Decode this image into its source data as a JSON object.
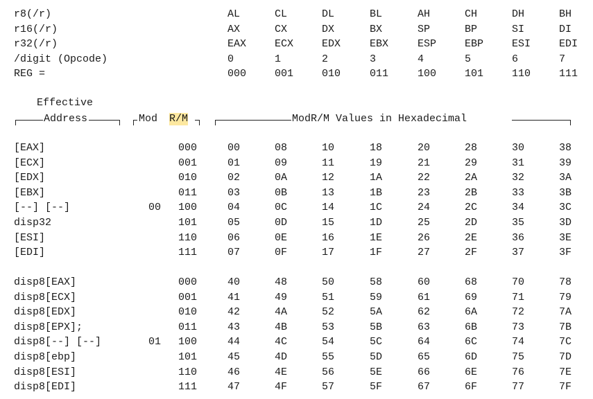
{
  "header": {
    "rows": [
      {
        "label": "r8(/r)",
        "values": [
          "AL",
          "CL",
          "DL",
          "BL",
          "AH",
          "CH",
          "DH",
          "BH"
        ]
      },
      {
        "label": "r16(/r)",
        "values": [
          "AX",
          "CX",
          "DX",
          "BX",
          "SP",
          "BP",
          "SI",
          "DI"
        ]
      },
      {
        "label": "r32(/r)",
        "values": [
          "EAX",
          "ECX",
          "EDX",
          "EBX",
          "ESP",
          "EBP",
          "ESI",
          "EDI"
        ]
      },
      {
        "label": "/digit (Opcode)",
        "values": [
          "0",
          "1",
          "2",
          "3",
          "4",
          "5",
          "6",
          "7"
        ]
      },
      {
        "label": "REG =",
        "values": [
          "000",
          "001",
          "010",
          "011",
          "100",
          "101",
          "110",
          "111"
        ]
      }
    ]
  },
  "column_headers": {
    "effective": "Effective",
    "address": "Address",
    "mod": "Mod",
    "rm": "R/M",
    "values_title": "ModR/M Values in Hexadecimal"
  },
  "groups": [
    {
      "mod": "00",
      "rows": [
        {
          "address": "[EAX]",
          "rm": "000",
          "values": [
            "00",
            "08",
            "10",
            "18",
            "20",
            "28",
            "30",
            "38"
          ]
        },
        {
          "address": "[ECX]",
          "rm": "001",
          "values": [
            "01",
            "09",
            "11",
            "19",
            "21",
            "29",
            "31",
            "39"
          ]
        },
        {
          "address": "[EDX]",
          "rm": "010",
          "values": [
            "02",
            "0A",
            "12",
            "1A",
            "22",
            "2A",
            "32",
            "3A"
          ]
        },
        {
          "address": "[EBX]",
          "rm": "011",
          "values": [
            "03",
            "0B",
            "13",
            "1B",
            "23",
            "2B",
            "33",
            "3B"
          ]
        },
        {
          "address": "[--] [--]",
          "rm": "100",
          "values": [
            "04",
            "0C",
            "14",
            "1C",
            "24",
            "2C",
            "34",
            "3C"
          ]
        },
        {
          "address": "disp32",
          "rm": "101",
          "values": [
            "05",
            "0D",
            "15",
            "1D",
            "25",
            "2D",
            "35",
            "3D"
          ]
        },
        {
          "address": "[ESI]",
          "rm": "110",
          "values": [
            "06",
            "0E",
            "16",
            "1E",
            "26",
            "2E",
            "36",
            "3E"
          ]
        },
        {
          "address": "[EDI]",
          "rm": "111",
          "values": [
            "07",
            "0F",
            "17",
            "1F",
            "27",
            "2F",
            "37",
            "3F"
          ]
        }
      ]
    },
    {
      "mod": "01",
      "rows": [
        {
          "address": "disp8[EAX]",
          "rm": "000",
          "values": [
            "40",
            "48",
            "50",
            "58",
            "60",
            "68",
            "70",
            "78"
          ]
        },
        {
          "address": "disp8[ECX]",
          "rm": "001",
          "values": [
            "41",
            "49",
            "51",
            "59",
            "61",
            "69",
            "71",
            "79"
          ]
        },
        {
          "address": "disp8[EDX]",
          "rm": "010",
          "values": [
            "42",
            "4A",
            "52",
            "5A",
            "62",
            "6A",
            "72",
            "7A"
          ]
        },
        {
          "address": "disp8[EPX];",
          "rm": "011",
          "values": [
            "43",
            "4B",
            "53",
            "5B",
            "63",
            "6B",
            "73",
            "7B"
          ]
        },
        {
          "address": "disp8[--] [--]",
          "rm": "100",
          "values": [
            "44",
            "4C",
            "54",
            "5C",
            "64",
            "6C",
            "74",
            "7C"
          ]
        },
        {
          "address": "disp8[ebp]",
          "rm": "101",
          "values": [
            "45",
            "4D",
            "55",
            "5D",
            "65",
            "6D",
            "75",
            "7D"
          ]
        },
        {
          "address": "disp8[ESI]",
          "rm": "110",
          "values": [
            "46",
            "4E",
            "56",
            "5E",
            "66",
            "6E",
            "76",
            "7E"
          ]
        },
        {
          "address": "disp8[EDI]",
          "rm": "111",
          "values": [
            "47",
            "4F",
            "57",
            "5F",
            "67",
            "6F",
            "77",
            "7F"
          ]
        }
      ]
    }
  ],
  "colors": {
    "highlight": "#fde8a0",
    "text": "#1a1a1a"
  }
}
